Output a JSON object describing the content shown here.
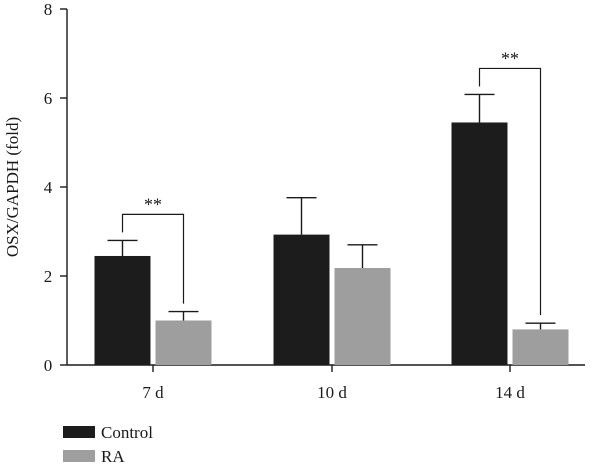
{
  "chart_data": {
    "type": "bar",
    "categories": [
      "7 d",
      "10 d",
      "14 d"
    ],
    "ylabel": "OSX/GAPDH (fold)",
    "ylim": [
      0,
      8
    ],
    "yticks": [
      0,
      2,
      4,
      6,
      8
    ],
    "grid": false,
    "legend_position": "bottom-left",
    "series": [
      {
        "name": "Control",
        "color": "#1c1c1c",
        "values": [
          2.45,
          2.93,
          5.45
        ],
        "errors": [
          0.35,
          0.83,
          0.63
        ]
      },
      {
        "name": "RA",
        "color": "#9e9e9e",
        "values": [
          1.0,
          2.18,
          0.8
        ],
        "errors": [
          0.2,
          0.52,
          0.14
        ]
      }
    ],
    "significance": [
      {
        "category": "7 d",
        "label": "**"
      },
      {
        "category": "14 d",
        "label": "**"
      }
    ]
  }
}
